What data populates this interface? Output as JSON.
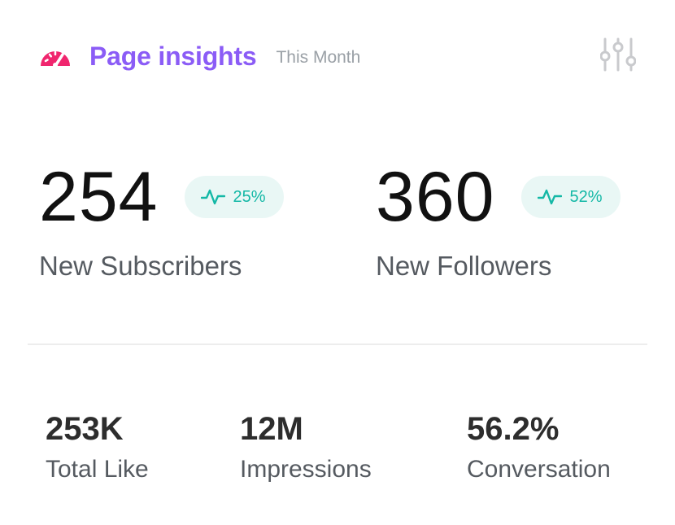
{
  "header": {
    "title": "Page insights",
    "period": "This Month",
    "icon": "gauge-icon",
    "filter_icon": "sliders-icon",
    "accent_color": "#8b5cf6",
    "icon_color": "#f0266e"
  },
  "stats": {
    "subscribers": {
      "value": "254",
      "change": "25%",
      "label": "New Subscribers"
    },
    "followers": {
      "value": "360",
      "change": "52%",
      "label": "New Followers"
    },
    "badge_color": "#14b8a6",
    "badge_bg": "#e9f7f5"
  },
  "metrics": {
    "likes": {
      "value": "253K",
      "label": "Total Like"
    },
    "impressions": {
      "value": "12M",
      "label": "Impressions"
    },
    "conversation": {
      "value": "56.2%",
      "label": "Conversation"
    }
  }
}
